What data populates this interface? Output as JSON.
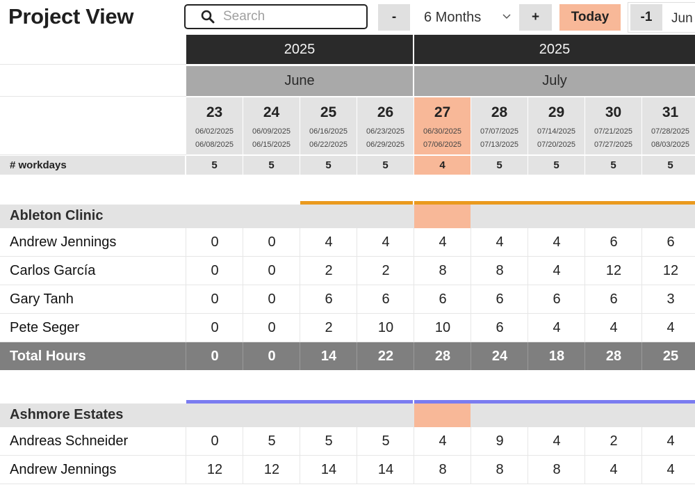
{
  "app": {
    "title": "Project View"
  },
  "toolbar": {
    "search_placeholder": "Search",
    "minus_label": "-",
    "range_label": "6 Months",
    "plus_label": "+",
    "today_label": "Today",
    "prev_label": "-1",
    "month_label": "Jun"
  },
  "colors": {
    "highlight": "#f8b898",
    "year_bg": "#2a2a2a",
    "month_bg": "#a9a9a9",
    "total_bg": "#7f7f7f",
    "accent_orange": "#ea9a1e",
    "accent_blue": "#7a7cf0"
  },
  "years": [
    {
      "label": "2025"
    },
    {
      "label": "2025"
    }
  ],
  "months": [
    {
      "label": "June"
    },
    {
      "label": "July"
    }
  ],
  "weeks": [
    {
      "num": "23",
      "start": "06/02/2025",
      "end": "06/08/2025",
      "workdays": "5"
    },
    {
      "num": "24",
      "start": "06/09/2025",
      "end": "06/15/2025",
      "workdays": "5"
    },
    {
      "num": "25",
      "start": "06/16/2025",
      "end": "06/22/2025",
      "workdays": "5"
    },
    {
      "num": "26",
      "start": "06/23/2025",
      "end": "06/29/2025",
      "workdays": "5"
    },
    {
      "num": "27",
      "start": "06/30/2025",
      "end": "07/06/2025",
      "workdays": "4"
    },
    {
      "num": "28",
      "start": "07/07/2025",
      "end": "07/13/2025",
      "workdays": "5"
    },
    {
      "num": "29",
      "start": "07/14/2025",
      "end": "07/20/2025",
      "workdays": "5"
    },
    {
      "num": "30",
      "start": "07/21/2025",
      "end": "07/27/2025",
      "workdays": "5"
    },
    {
      "num": "31",
      "start": "07/28/2025",
      "end": "08/03/2025",
      "workdays": "5"
    }
  ],
  "workdays_label": "# workdays",
  "projects": [
    {
      "name": "Ableton Clinic",
      "rows": [
        {
          "name": "Andrew Jennings",
          "values": [
            "0",
            "0",
            "4",
            "4",
            "4",
            "4",
            "4",
            "6",
            "6"
          ]
        },
        {
          "name": "Carlos García",
          "values": [
            "0",
            "0",
            "2",
            "2",
            "8",
            "8",
            "4",
            "12",
            "12"
          ]
        },
        {
          "name": "Gary Tanh",
          "values": [
            "0",
            "0",
            "6",
            "6",
            "6",
            "6",
            "6",
            "6",
            "3"
          ]
        },
        {
          "name": "Pete Seger",
          "values": [
            "0",
            "0",
            "2",
            "10",
            "10",
            "6",
            "4",
            "4",
            "4"
          ]
        }
      ],
      "total_label": "Total Hours",
      "totals": [
        "0",
        "0",
        "14",
        "22",
        "28",
        "24",
        "18",
        "28",
        "25"
      ]
    },
    {
      "name": "Ashmore Estates",
      "rows": [
        {
          "name": "Andreas Schneider",
          "values": [
            "0",
            "5",
            "5",
            "5",
            "4",
            "9",
            "4",
            "2",
            "4"
          ]
        },
        {
          "name": "Andrew Jennings",
          "values": [
            "12",
            "12",
            "14",
            "14",
            "8",
            "8",
            "8",
            "4",
            "4"
          ]
        }
      ]
    }
  ]
}
